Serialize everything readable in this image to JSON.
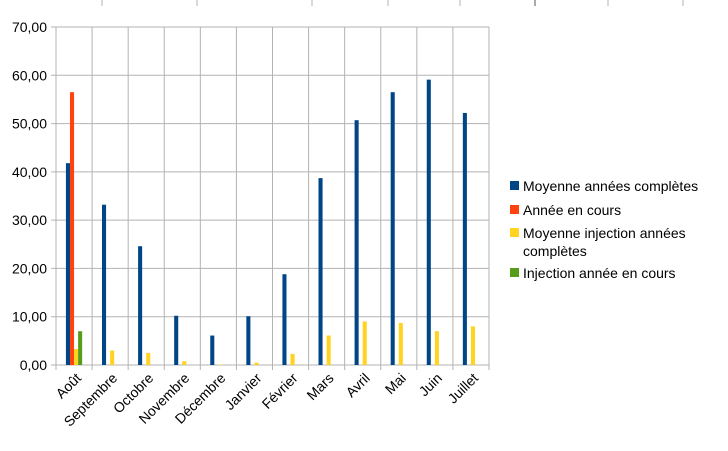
{
  "chart_data": {
    "type": "bar",
    "categories": [
      "Août",
      "Septembre",
      "Octobre",
      "Novembre",
      "Décembre",
      "Janvier",
      "Février",
      "Mars",
      "Avril",
      "Mai",
      "Juin",
      "Juillet"
    ],
    "series": [
      {
        "name": "Moyenne années complètes",
        "color": "#004586",
        "values": [
          41.8,
          33.2,
          24.6,
          10.2,
          6.1,
          10.1,
          18.8,
          38.7,
          50.7,
          56.5,
          59.1,
          52.2
        ]
      },
      {
        "name": "Année en cours",
        "color": "#ff420e",
        "values": [
          56.5,
          null,
          null,
          null,
          null,
          null,
          null,
          null,
          null,
          null,
          null,
          null
        ]
      },
      {
        "name": "Moyenne injection années complètes",
        "color": "#ffd320",
        "values": [
          3.3,
          3.0,
          2.5,
          0.8,
          0.1,
          0.5,
          2.3,
          6.1,
          9.0,
          8.7,
          7.0,
          8.0
        ]
      },
      {
        "name": "Injection année en cours",
        "color": "#579d1c",
        "values": [
          7.0,
          null,
          null,
          null,
          null,
          null,
          null,
          null,
          null,
          null,
          null,
          null
        ]
      }
    ],
    "ylim": [
      0,
      70
    ],
    "yticks": [
      "0,00",
      "10,00",
      "20,00",
      "30,00",
      "40,00",
      "50,00",
      "60,00",
      "70,00"
    ],
    "grid": true,
    "legend_position": "right"
  }
}
